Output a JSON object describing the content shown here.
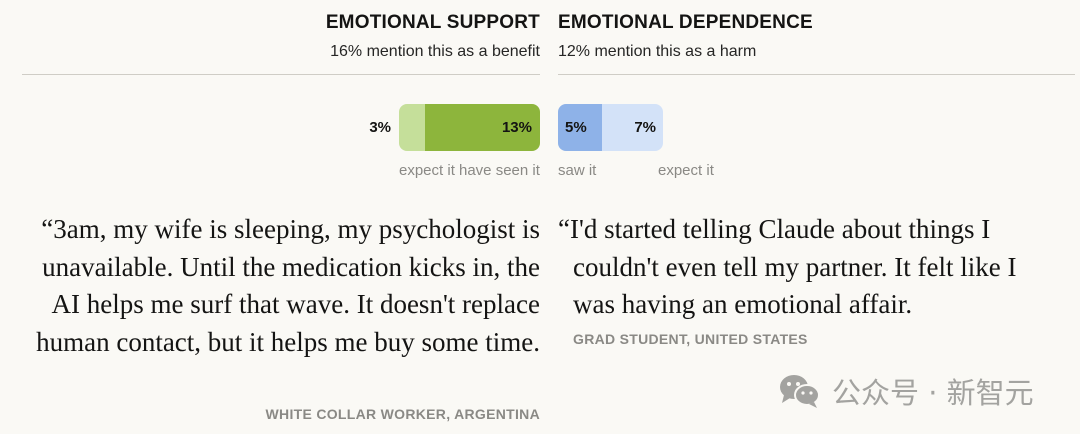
{
  "left": {
    "title": "EMOTIONAL SUPPORT",
    "subtitle": "16% mention this as a benefit",
    "bar": {
      "segments": [
        {
          "value": "3%",
          "label": "expect it",
          "color": "#c5df9a"
        },
        {
          "value": "13%",
          "label": "have seen it",
          "color": "#8db53c"
        }
      ]
    },
    "quote": "“3am, my wife is sleeping, my psychologist is unavailable. Until the medication kicks in, the AI helps me surf that wave. It doesn't replace human contact, but it helps me buy some time.",
    "attribution": "WHITE COLLAR WORKER, ARGENTINA"
  },
  "right": {
    "title": "EMOTIONAL DEPENDENCE",
    "subtitle": "12% mention this as a harm",
    "bar": {
      "segments": [
        {
          "value": "5%",
          "label": "saw it",
          "color": "#8eb2e8"
        },
        {
          "value": "7%",
          "label": "expect it",
          "color": "#d3e2f8"
        }
      ]
    },
    "quote": "“I'd started telling Claude about things I couldn't even tell my partner. It felt like I was having an emotional affair.",
    "attribution": "GRAD STUDENT, UNITED STATES"
  },
  "watermark": {
    "icon": "wechat-icon",
    "text": "公众号 · 新智元"
  }
}
